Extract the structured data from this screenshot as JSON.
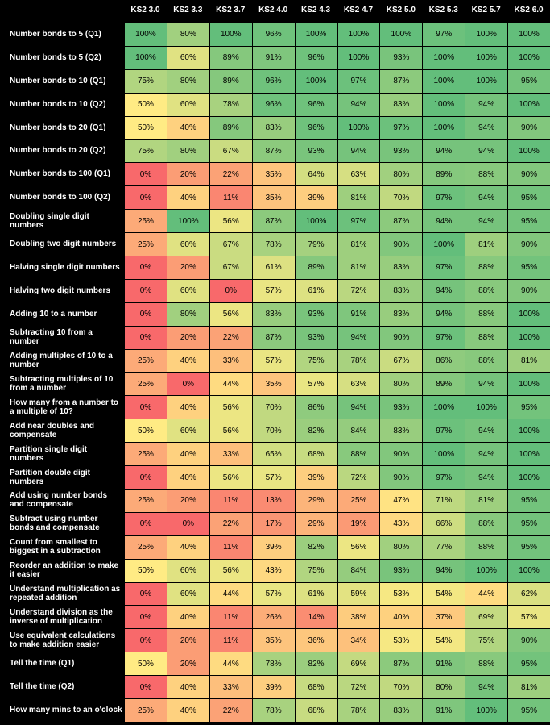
{
  "chart_data": {
    "type": "heatmap",
    "title": "",
    "columns": [
      "KS2 3.0",
      "KS2 3.3",
      "KS2 3.7",
      "KS2 4.0",
      "KS2 4.3",
      "KS2 4.7",
      "KS2 5.0",
      "KS2 5.3",
      "KS2 5.7",
      "KS2 6.0"
    ],
    "unit": "%",
    "rows": [
      {
        "label": "Number bonds to 5 (Q1)",
        "values": [
          100,
          80,
          100,
          96,
          100,
          100,
          100,
          97,
          100,
          100
        ]
      },
      {
        "label": "Number bonds to 5 (Q2)",
        "values": [
          100,
          60,
          89,
          91,
          96,
          100,
          93,
          100,
          100,
          100
        ]
      },
      {
        "label": "Number bonds to 10 (Q1)",
        "values": [
          75,
          80,
          89,
          96,
          100,
          97,
          87,
          100,
          100,
          95
        ]
      },
      {
        "label": "Number bonds to 10 (Q2)",
        "values": [
          50,
          60,
          78,
          96,
          96,
          94,
          83,
          100,
          94,
          100
        ]
      },
      {
        "label": "Number bonds to 20 (Q1)",
        "values": [
          50,
          40,
          89,
          83,
          96,
          100,
          97,
          100,
          94,
          90
        ]
      },
      {
        "label": "Number bonds to 20 (Q2)",
        "values": [
          75,
          80,
          67,
          87,
          93,
          94,
          93,
          94,
          94,
          100
        ]
      },
      {
        "label": "Number bonds to 100 (Q1)",
        "values": [
          0,
          20,
          22,
          35,
          64,
          63,
          80,
          89,
          88,
          90
        ]
      },
      {
        "label": "Number bonds to 100 (Q2)",
        "values": [
          0,
          40,
          11,
          35,
          39,
          81,
          70,
          97,
          94,
          95
        ]
      },
      {
        "label": "Doubling single digit numbers",
        "values": [
          25,
          100,
          56,
          87,
          100,
          97,
          87,
          94,
          94,
          95
        ]
      },
      {
        "label": "Doubling two digit numbers",
        "values": [
          25,
          60,
          67,
          78,
          79,
          81,
          90,
          100,
          81,
          90
        ]
      },
      {
        "label": "Halving single digit numbers",
        "values": [
          0,
          20,
          67,
          61,
          89,
          81,
          83,
          97,
          88,
          95
        ]
      },
      {
        "label": "Halving two digit numbers",
        "values": [
          0,
          60,
          0,
          57,
          61,
          72,
          83,
          94,
          88,
          90
        ]
      },
      {
        "label": "Adding 10 to a number",
        "values": [
          0,
          80,
          56,
          83,
          93,
          91,
          83,
          94,
          88,
          100
        ]
      },
      {
        "label": "Subtracting 10 from a number",
        "values": [
          0,
          20,
          22,
          87,
          93,
          94,
          90,
          97,
          88,
          100
        ]
      },
      {
        "label": "Adding multiples of 10 to a number",
        "values": [
          25,
          40,
          33,
          57,
          75,
          78,
          67,
          86,
          88,
          81
        ]
      },
      {
        "label": "Subtracting multiples of 10 from a number",
        "values": [
          25,
          0,
          44,
          35,
          57,
          63,
          80,
          89,
          94,
          100
        ]
      },
      {
        "label": "How many from a number to a multiple of 10?",
        "values": [
          0,
          40,
          56,
          70,
          86,
          94,
          93,
          100,
          100,
          95
        ]
      },
      {
        "label": "Add near doubles and compensate",
        "values": [
          50,
          60,
          56,
          70,
          82,
          84,
          83,
          97,
          94,
          100
        ]
      },
      {
        "label": "Partition single digit numbers",
        "values": [
          25,
          40,
          33,
          65,
          68,
          88,
          90,
          100,
          94,
          100
        ]
      },
      {
        "label": "Partition double digit numbers",
        "values": [
          0,
          40,
          56,
          57,
          39,
          72,
          90,
          97,
          94,
          100
        ]
      },
      {
        "label": "Add using number bonds and compensate",
        "values": [
          25,
          20,
          11,
          13,
          29,
          25,
          47,
          71,
          81,
          95
        ]
      },
      {
        "label": "Subtract using number bonds and compensate",
        "values": [
          0,
          0,
          22,
          17,
          29,
          19,
          43,
          66,
          88,
          95
        ]
      },
      {
        "label": "Count from smallest to biggest in a subtraction",
        "values": [
          25,
          40,
          11,
          39,
          82,
          56,
          80,
          77,
          88,
          95
        ]
      },
      {
        "label": "Reorder an addition to make it easier",
        "values": [
          50,
          60,
          56,
          43,
          75,
          84,
          93,
          94,
          100,
          100
        ]
      },
      {
        "label": "Understand multiplication as repeated addition",
        "values": [
          0,
          60,
          44,
          57,
          61,
          59,
          53,
          54,
          44,
          62
        ]
      },
      {
        "label": "Understand division as the inverse of multiplication",
        "values": [
          0,
          40,
          11,
          26,
          14,
          38,
          40,
          37,
          69,
          57
        ]
      },
      {
        "label": "Use equivalent calculations to make addition easier",
        "values": [
          0,
          20,
          11,
          35,
          36,
          34,
          53,
          54,
          75,
          90
        ]
      },
      {
        "label": "Tell the time (Q1)",
        "values": [
          50,
          20,
          44,
          78,
          82,
          69,
          87,
          91,
          88,
          95
        ]
      },
      {
        "label": "Tell the time (Q2)",
        "values": [
          0,
          40,
          33,
          39,
          68,
          72,
          70,
          80,
          94,
          81
        ]
      },
      {
        "label": "How many mins to an o'clock",
        "values": [
          25,
          40,
          22,
          78,
          68,
          78,
          83,
          91,
          100,
          95
        ]
      }
    ],
    "color_scale": {
      "low": "#f8696b",
      "mid": "#ffeb84",
      "high": "#63be7b"
    }
  }
}
